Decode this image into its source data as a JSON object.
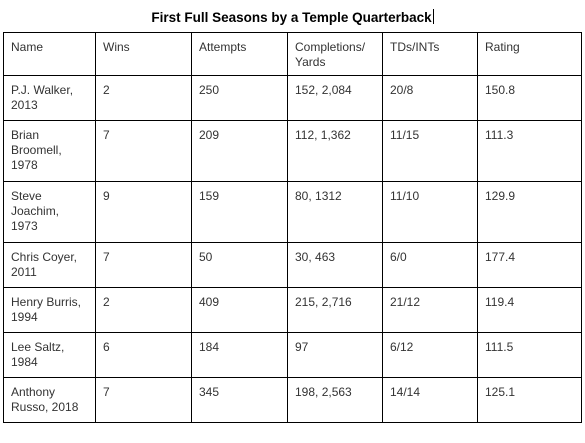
{
  "title": "First Full Seasons by a Temple Quarterback",
  "table": {
    "headers": [
      "Name",
      "Wins",
      "Attempts",
      "Completions/ Yards",
      "TDs/INTs",
      "Rating"
    ],
    "rows": [
      [
        "P.J. Walker, 2013",
        "2",
        "250",
        "152, 2,084",
        "20/8",
        "150.8"
      ],
      [
        "Brian Broomell, 1978",
        "7",
        "209",
        "112, 1,362",
        "11/15",
        "111.3"
      ],
      [
        "Steve Joachim, 1973",
        "9",
        "159",
        "80, 1312",
        "11/10",
        "129.9"
      ],
      [
        "Chris Coyer, 2011",
        "7",
        "50",
        "30, 463",
        "6/0",
        "177.4"
      ],
      [
        "Henry Burris, 1994",
        "2",
        "409",
        "215, 2,716",
        "21/12",
        "119.4"
      ],
      [
        "Lee Saltz, 1984",
        "6",
        "184",
        "97",
        "6/12",
        "111.5"
      ],
      [
        "Anthony Russo, 2018",
        "7",
        "345",
        "198, 2,563",
        "14/14",
        "125.1"
      ]
    ]
  }
}
